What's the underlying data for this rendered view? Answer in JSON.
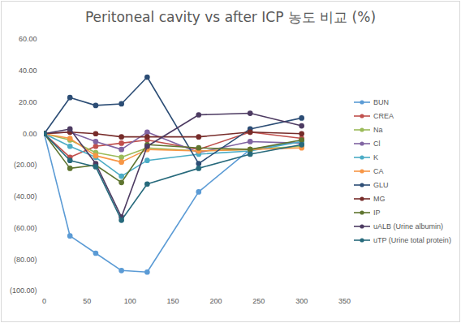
{
  "chart_data": {
    "type": "line",
    "title": "Peritoneal cavity vs after ICP 농도 비교 (%)",
    "x": [
      0,
      30,
      60,
      90,
      120,
      180,
      240,
      300
    ],
    "xlim": [
      0,
      350
    ],
    "xticks": [
      0,
      50,
      100,
      150,
      200,
      250,
      300,
      350
    ],
    "ylim": [
      -100,
      60
    ],
    "yticks": [
      {
        "value": -100,
        "label": "(100.00)"
      },
      {
        "value": -80,
        "label": "(80.00)"
      },
      {
        "value": -60,
        "label": "(60.00)"
      },
      {
        "value": -40,
        "label": "(40.00)"
      },
      {
        "value": -20,
        "label": "(20.00)"
      },
      {
        "value": 0,
        "label": "0.00"
      },
      {
        "value": 20,
        "label": "20.00"
      },
      {
        "value": 40,
        "label": "40.00"
      },
      {
        "value": 60,
        "label": "60.00"
      }
    ],
    "grid": false,
    "legend": "right",
    "marker": "circle",
    "series": [
      {
        "name": "BUN",
        "color": "#5B9BD5",
        "values": [
          0,
          -65,
          -76,
          -87,
          -88,
          -37,
          -10,
          -5
        ]
      },
      {
        "name": "CREA",
        "color": "#C0504D",
        "values": [
          0,
          -15,
          -8,
          -6,
          -4,
          -10,
          1,
          -3
        ]
      },
      {
        "name": "Na",
        "color": "#9BBB59",
        "values": [
          0,
          -4,
          -12,
          -15,
          -9,
          -11,
          -10,
          -8
        ]
      },
      {
        "name": "Cl",
        "color": "#8064A2",
        "values": [
          0,
          1,
          -5,
          -10,
          1,
          -12,
          -5,
          -6
        ]
      },
      {
        "name": "K",
        "color": "#4BACC6",
        "values": [
          0,
          -8,
          -15,
          -27,
          -17,
          -13,
          -11,
          -5
        ]
      },
      {
        "name": "CA",
        "color": "#F79646",
        "values": [
          0,
          -3,
          -14,
          -18,
          -10,
          -11,
          -10,
          -9
        ]
      },
      {
        "name": "GLU",
        "color": "#2C4D75",
        "values": [
          0,
          23,
          18,
          19,
          36,
          -19,
          3,
          10
        ]
      },
      {
        "name": "MG",
        "color": "#772C2A",
        "values": [
          0,
          1,
          0,
          -2,
          -2,
          -2,
          1,
          0
        ]
      },
      {
        "name": "IP",
        "color": "#5F7530",
        "values": [
          0,
          -22,
          -20,
          -31,
          -7,
          -9,
          -10,
          -4
        ]
      },
      {
        "name": "uALB (Urine albumin)",
        "color": "#4D3B62",
        "values": [
          0,
          3,
          -19,
          -53,
          -8,
          12,
          13,
          5
        ]
      },
      {
        "name": "uTP (Urine total protein)",
        "color": "#276A7C",
        "values": [
          0,
          -17,
          -21,
          -55,
          -32,
          -22,
          -13,
          -7
        ]
      }
    ]
  }
}
